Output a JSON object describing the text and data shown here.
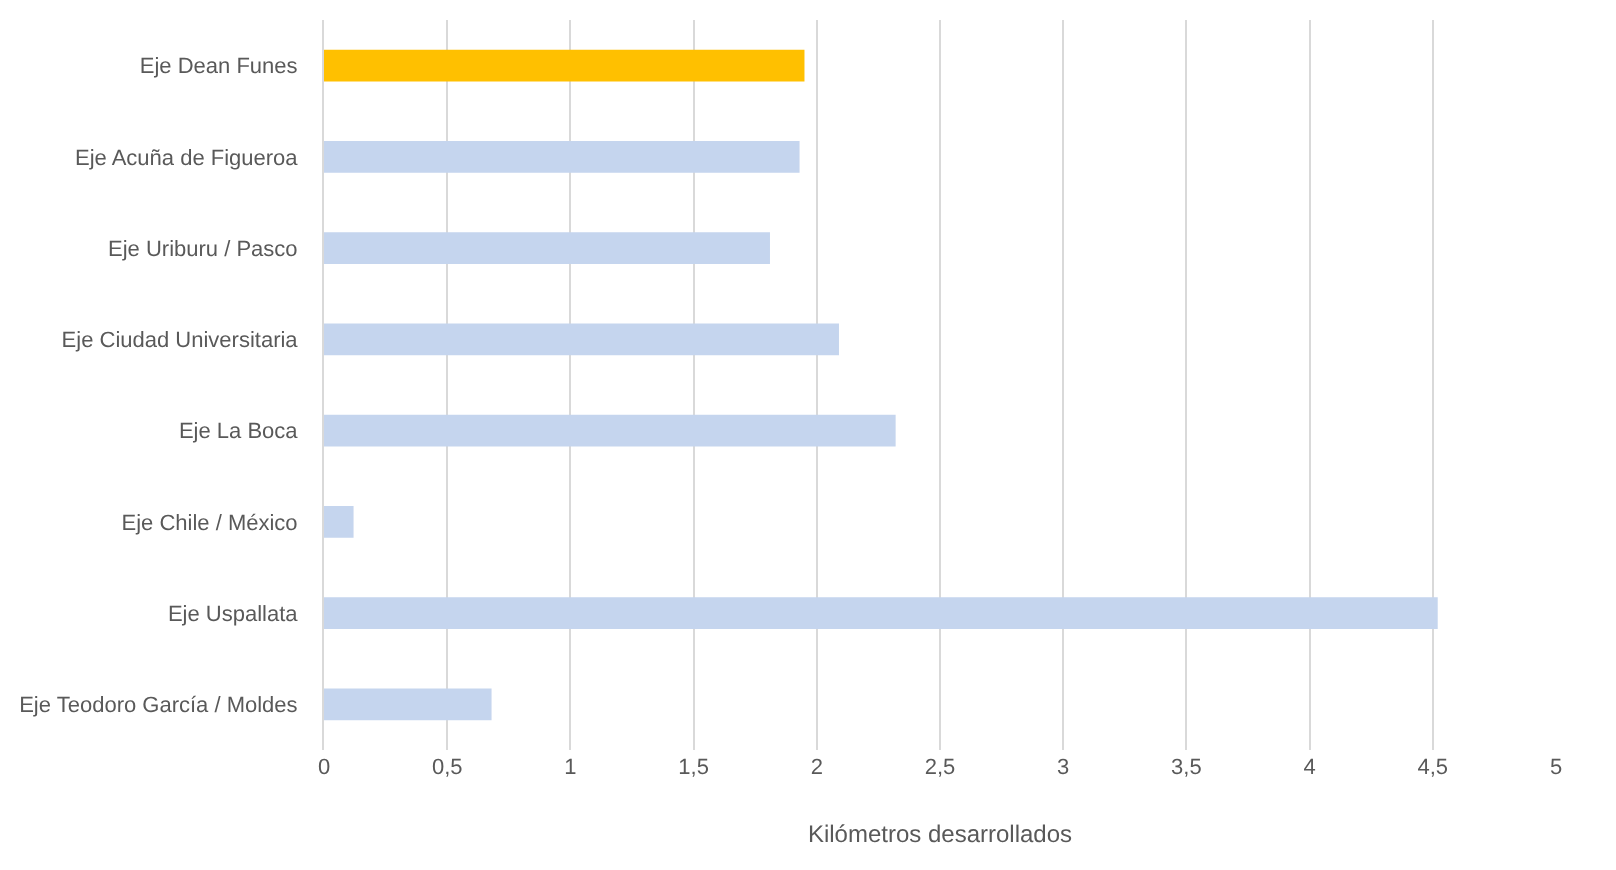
{
  "chart_data": {
    "type": "bar",
    "orientation": "horizontal",
    "xlabel": "Kilómetros desarrollados",
    "categories": [
      "Eje Dean Funes",
      "Eje Acuña de Figueroa",
      "Eje Uriburu / Pasco",
      "Eje Ciudad Universitaria",
      "Eje La Boca",
      "Eje Chile / México",
      "Eje Uspallata",
      "Eje Teodoro García / Moldes"
    ],
    "values": [
      1.95,
      1.93,
      1.81,
      2.09,
      2.32,
      0.12,
      4.52,
      0.68
    ],
    "colors": [
      "#ffc000",
      "#c5d5ee",
      "#c5d5ee",
      "#c5d5ee",
      "#c5d5ee",
      "#c5d5ee",
      "#c5d5ee",
      "#c5d5ee"
    ],
    "xlim": [
      0,
      5
    ],
    "xticks": [
      0,
      {
        "value": 0.5,
        "label": "0,5"
      },
      1,
      {
        "value": 1.5,
        "label": "1,5"
      },
      2,
      {
        "value": 2.5,
        "label": "2,5"
      },
      3,
      {
        "value": 3.5,
        "label": "3,5"
      },
      4,
      {
        "value": 4.5,
        "label": "4,5"
      },
      5
    ],
    "grid": "x"
  }
}
